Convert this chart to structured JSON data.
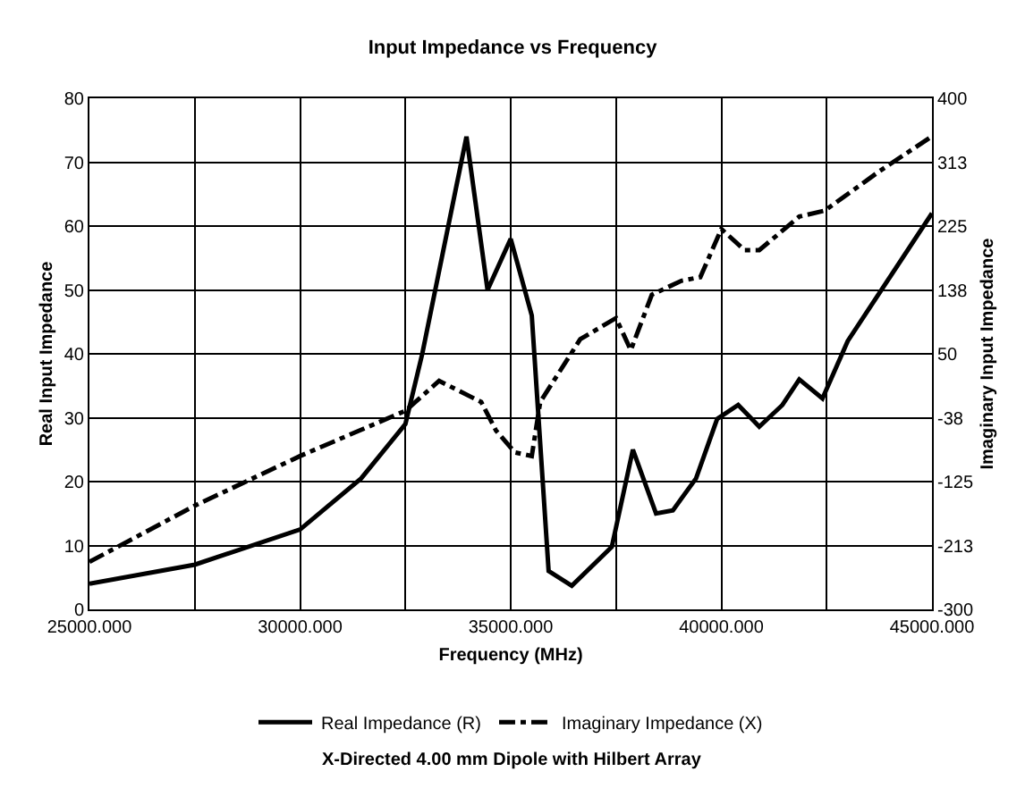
{
  "chart_data": {
    "type": "line",
    "title": "Input Impedance vs Frequency",
    "xlabel": "Frequency (MHz)",
    "ylabel": "Real Input Impedance",
    "y2label": "Imaginary Input Impedance",
    "annotations": [
      "X-Directed 4.00 mm Dipole with Hilbert Array"
    ],
    "xlim": [
      25000,
      45000
    ],
    "xticks": [
      {
        "value": 25000,
        "label": "25000.000"
      },
      {
        "value": 27500,
        "label": null
      },
      {
        "value": 30000,
        "label": "30000.000"
      },
      {
        "value": 32500,
        "label": null
      },
      {
        "value": 35000,
        "label": "35000.000"
      },
      {
        "value": 37500,
        "label": null
      },
      {
        "value": 40000,
        "label": "40000.000"
      },
      {
        "value": 42500,
        "label": null
      },
      {
        "value": 45000,
        "label": "45000.000"
      }
    ],
    "ylim": [
      0,
      80
    ],
    "yticks": [
      0,
      10,
      20,
      30,
      40,
      50,
      60,
      70,
      80
    ],
    "y2lim": [
      -300,
      400
    ],
    "y2ticks": [
      -300,
      {
        "value": -212.5,
        "label": "-213"
      },
      -125,
      {
        "value": -37.5,
        "label": "-38"
      },
      50,
      {
        "value": 137.5,
        "label": "138"
      },
      225,
      {
        "value": 312.5,
        "label": "313"
      },
      400
    ],
    "grid": true,
    "legend": "bottom",
    "marker": "none",
    "series": [
      {
        "name": "Real Impedance (R)",
        "color": "#000000",
        "line_style": "solid",
        "x": [
          25000,
          27500,
          30000,
          31450,
          32500,
          32900,
          33950,
          34450,
          35000,
          35500,
          35900,
          36450,
          37400,
          37900,
          38450,
          38850,
          39400,
          39900,
          40400,
          40900,
          41450,
          41850,
          42400,
          43000,
          45000
        ],
        "values": [
          4,
          7,
          12.5,
          20.5,
          29,
          40,
          74,
          50,
          58,
          46,
          6,
          3.7,
          9.8,
          25,
          15,
          15.5,
          20.5,
          29.8,
          32,
          28.6,
          32,
          36,
          33,
          42,
          62
        ]
      },
      {
        "name": "Imaginary Impedance (X)",
        "color": "#000000",
        "line_style": "dashed",
        "axis": "y2",
        "x": [
          25000,
          27500,
          30000,
          32500,
          33300,
          34300,
          34650,
          35100,
          35500,
          35700,
          36650,
          37500,
          37850,
          38350,
          39050,
          39500,
          40000,
          40550,
          40900,
          41850,
          42450,
          43750,
          45000
        ],
        "values": [
          -235,
          -158,
          -90,
          -28,
          13,
          -16,
          -55,
          -85,
          -90,
          -16,
          70,
          99,
          55,
          131,
          150,
          155,
          221,
          192,
          192,
          238,
          246,
          300,
          348
        ]
      }
    ]
  }
}
